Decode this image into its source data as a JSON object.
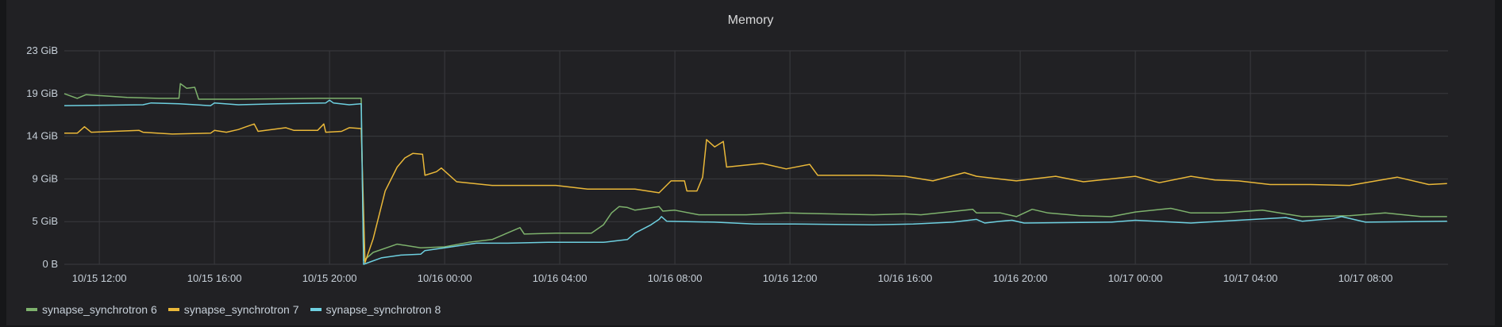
{
  "panel": {
    "title": "Memory"
  },
  "chart_data": {
    "type": "line",
    "title": "Memory",
    "xlabel": "",
    "ylabel": "",
    "x_range": [
      "10/15 10:47",
      "10/17 10:52"
    ],
    "x_ticks": [
      "10/15 12:00",
      "10/15 16:00",
      "10/15 20:00",
      "10/16 00:00",
      "10/16 04:00",
      "10/16 08:00",
      "10/16 12:00",
      "10/16 16:00",
      "10/16 20:00",
      "10/17 00:00",
      "10/17 04:00",
      "10/17 08:00"
    ],
    "ylim": [
      0,
      23.283
    ],
    "y_unit": "GiB",
    "y_ticks": [
      {
        "value": 0,
        "label": "0 B"
      },
      {
        "value": 4.657,
        "label": "5 GiB"
      },
      {
        "value": 9.313,
        "label": "9 GiB"
      },
      {
        "value": 13.97,
        "label": "14 GiB"
      },
      {
        "value": 18.626,
        "label": "19 GiB"
      },
      {
        "value": 23.283,
        "label": "23 GiB"
      }
    ],
    "grid": true,
    "legend_position": "bottom-left",
    "series": [
      {
        "name": "synapse_synchrotron 6",
        "color": "#7EB26D",
        "points": [
          [
            "10/15 10:47",
            18.6
          ],
          [
            "10/15 11:14",
            18.1
          ],
          [
            "10/15 11:32",
            18.5
          ],
          [
            "10/15 12:58",
            18.2
          ],
          [
            "10/15 14:04",
            18.1
          ],
          [
            "10/15 14:46",
            18.1
          ],
          [
            "10/15 14:49",
            19.7
          ],
          [
            "10/15 15:02",
            19.2
          ],
          [
            "10/15 15:19",
            19.3
          ],
          [
            "10/15 15:27",
            18.0
          ],
          [
            "10/15 16:50",
            18.0
          ],
          [
            "10/15 19:35",
            18.1
          ],
          [
            "10/15 21:06",
            18.1
          ],
          [
            "10/15 21:11",
            0.4
          ],
          [
            "10/15 21:31",
            1.3
          ],
          [
            "10/15 22:21",
            2.2
          ],
          [
            "10/15 23:10",
            1.8
          ],
          [
            "10/16 00:00",
            1.9
          ],
          [
            "10/16 00:50",
            2.4
          ],
          [
            "10/16 01:39",
            2.7
          ],
          [
            "10/16 02:37",
            4.0
          ],
          [
            "10/16 02:46",
            3.3
          ],
          [
            "10/16 03:52",
            3.4
          ],
          [
            "10/16 05:06",
            3.4
          ],
          [
            "10/16 05:31",
            4.3
          ],
          [
            "10/16 05:48",
            5.6
          ],
          [
            "10/16 06:04",
            6.3
          ],
          [
            "10/16 06:21",
            6.2
          ],
          [
            "10/16 06:37",
            5.9
          ],
          [
            "10/16 07:02",
            6.1
          ],
          [
            "10/16 07:27",
            6.3
          ],
          [
            "10/16 07:35",
            5.8
          ],
          [
            "10/16 08:00",
            5.9
          ],
          [
            "10/16 08:50",
            5.4
          ],
          [
            "10/16 10:29",
            5.4
          ],
          [
            "10/16 11:52",
            5.6
          ],
          [
            "10/16 14:54",
            5.4
          ],
          [
            "10/16 16:00",
            5.5
          ],
          [
            "10/16 16:33",
            5.4
          ],
          [
            "10/16 18:21",
            6.0
          ],
          [
            "10/16 18:29",
            5.6
          ],
          [
            "10/16 19:19",
            5.6
          ],
          [
            "10/16 19:52",
            5.2
          ],
          [
            "10/16 20:25",
            6.0
          ],
          [
            "10/16 20:58",
            5.6
          ],
          [
            "10/16 22:04",
            5.3
          ],
          [
            "10/16 23:10",
            5.2
          ],
          [
            "10/17 00:00",
            5.7
          ],
          [
            "10/17 01:14",
            6.1
          ],
          [
            "10/17 01:56",
            5.6
          ],
          [
            "10/17 03:02",
            5.6
          ],
          [
            "10/17 04:25",
            5.9
          ],
          [
            "10/17 05:48",
            5.2
          ],
          [
            "10/17 07:27",
            5.3
          ],
          [
            "10/17 08:41",
            5.6
          ],
          [
            "10/17 09:56",
            5.2
          ],
          [
            "10/17 10:50",
            5.2
          ]
        ]
      },
      {
        "name": "synapse_synchrotron 7",
        "color": "#EAB839",
        "points": [
          [
            "10/15 10:47",
            14.3
          ],
          [
            "10/15 11:14",
            14.3
          ],
          [
            "10/15 11:29",
            15.0
          ],
          [
            "10/15 11:43",
            14.4
          ],
          [
            "10/15 13:23",
            14.6
          ],
          [
            "10/15 13:31",
            14.4
          ],
          [
            "10/15 14:32",
            14.2
          ],
          [
            "10/15 15:52",
            14.3
          ],
          [
            "10/15 16:00",
            14.6
          ],
          [
            "10/15 16:25",
            14.4
          ],
          [
            "10/15 16:50",
            14.7
          ],
          [
            "10/15 17:06",
            15.0
          ],
          [
            "10/15 17:23",
            15.3
          ],
          [
            "10/15 17:31",
            14.5
          ],
          [
            "10/15 18:29",
            14.9
          ],
          [
            "10/15 18:46",
            14.6
          ],
          [
            "10/15 19:35",
            14.6
          ],
          [
            "10/15 19:48",
            15.3
          ],
          [
            "10/15 19:52",
            14.4
          ],
          [
            "10/15 20:25",
            14.5
          ],
          [
            "10/15 20:41",
            14.9
          ],
          [
            "10/15 21:06",
            14.8
          ],
          [
            "10/15 21:14",
            0.2
          ],
          [
            "10/15 21:31",
            2.8
          ],
          [
            "10/15 21:56",
            8.0
          ],
          [
            "10/15 22:21",
            10.6
          ],
          [
            "10/15 22:37",
            11.6
          ],
          [
            "10/15 22:54",
            12.1
          ],
          [
            "10/15 23:14",
            12.0
          ],
          [
            "10/15 23:19",
            9.7
          ],
          [
            "10/15 23:43",
            10.1
          ],
          [
            "10/15 23:53",
            10.5
          ],
          [
            "10/16 00:25",
            9.0
          ],
          [
            "10/16 01:39",
            8.6
          ],
          [
            "10/16 03:52",
            8.6
          ],
          [
            "10/16 04:58",
            8.2
          ],
          [
            "10/16 06:37",
            8.2
          ],
          [
            "10/16 07:27",
            7.8
          ],
          [
            "10/16 07:52",
            9.1
          ],
          [
            "10/16 08:20",
            9.1
          ],
          [
            "10/16 08:25",
            8.0
          ],
          [
            "10/16 08:46",
            8.0
          ],
          [
            "10/16 08:58",
            9.5
          ],
          [
            "10/16 09:06",
            13.6
          ],
          [
            "10/16 09:23",
            12.8
          ],
          [
            "10/16 09:41",
            13.4
          ],
          [
            "10/16 09:48",
            10.6
          ],
          [
            "10/16 11:02",
            11.0
          ],
          [
            "10/16 11:52",
            10.4
          ],
          [
            "10/16 12:41",
            10.9
          ],
          [
            "10/16 12:58",
            9.7
          ],
          [
            "10/16 14:54",
            9.7
          ],
          [
            "10/16 16:00",
            9.6
          ],
          [
            "10/16 16:58",
            9.1
          ],
          [
            "10/16 18:04",
            10.0
          ],
          [
            "10/16 18:29",
            9.6
          ],
          [
            "10/16 19:52",
            9.1
          ],
          [
            "10/16 21:14",
            9.6
          ],
          [
            "10/16 22:12",
            9.0
          ],
          [
            "10/17 00:00",
            9.6
          ],
          [
            "10/17 00:50",
            8.9
          ],
          [
            "10/17 01:56",
            9.6
          ],
          [
            "10/17 02:46",
            9.2
          ],
          [
            "10/17 03:35",
            9.1
          ],
          [
            "10/17 04:41",
            8.7
          ],
          [
            "10/17 06:04",
            8.7
          ],
          [
            "10/17 07:27",
            8.6
          ],
          [
            "10/17 09:06",
            9.5
          ],
          [
            "10/17 10:12",
            8.7
          ],
          [
            "10/17 10:50",
            8.8
          ]
        ]
      },
      {
        "name": "synapse_synchrotron 8",
        "color": "#6ED0E0",
        "points": [
          [
            "10/15 10:47",
            17.3
          ],
          [
            "10/15 13:31",
            17.4
          ],
          [
            "10/15 13:48",
            17.6
          ],
          [
            "10/15 14:46",
            17.5
          ],
          [
            "10/15 15:52",
            17.3
          ],
          [
            "10/15 16:00",
            17.6
          ],
          [
            "10/15 16:50",
            17.4
          ],
          [
            "10/15 18:12",
            17.5
          ],
          [
            "10/15 19:52",
            17.6
          ],
          [
            "10/15 20:00",
            17.9
          ],
          [
            "10/15 20:08",
            17.6
          ],
          [
            "10/15 20:41",
            17.4
          ],
          [
            "10/15 21:06",
            17.5
          ],
          [
            "10/15 21:11",
            0.0
          ],
          [
            "10/15 21:48",
            0.7
          ],
          [
            "10/15 22:29",
            1.0
          ],
          [
            "10/15 23:10",
            1.1
          ],
          [
            "10/15 23:19",
            1.5
          ],
          [
            "10/16 00:00",
            1.8
          ],
          [
            "10/16 01:06",
            2.3
          ],
          [
            "10/16 02:12",
            2.3
          ],
          [
            "10/16 03:35",
            2.4
          ],
          [
            "10/16 05:31",
            2.4
          ],
          [
            "10/16 06:21",
            2.7
          ],
          [
            "10/16 06:37",
            3.4
          ],
          [
            "10/16 07:10",
            4.3
          ],
          [
            "10/16 07:27",
            4.9
          ],
          [
            "10/16 07:32",
            5.2
          ],
          [
            "10/16 07:43",
            4.7
          ],
          [
            "10/16 09:23",
            4.6
          ],
          [
            "10/16 10:46",
            4.4
          ],
          [
            "10/16 12:08",
            4.4
          ],
          [
            "10/16 14:54",
            4.3
          ],
          [
            "10/16 16:17",
            4.4
          ],
          [
            "10/16 17:39",
            4.6
          ],
          [
            "10/16 18:29",
            4.9
          ],
          [
            "10/16 18:46",
            4.5
          ],
          [
            "10/16 19:19",
            4.7
          ],
          [
            "10/16 19:43",
            4.8
          ],
          [
            "10/16 20:08",
            4.5
          ],
          [
            "10/16 23:10",
            4.6
          ],
          [
            "10/17 00:00",
            4.8
          ],
          [
            "10/17 01:56",
            4.5
          ],
          [
            "10/17 03:35",
            4.8
          ],
          [
            "10/17 05:14",
            5.1
          ],
          [
            "10/17 05:48",
            4.7
          ],
          [
            "10/17 06:54",
            5.0
          ],
          [
            "10/17 07:10",
            5.2
          ],
          [
            "10/17 08:00",
            4.6
          ],
          [
            "10/17 10:50",
            4.7
          ]
        ]
      }
    ]
  }
}
